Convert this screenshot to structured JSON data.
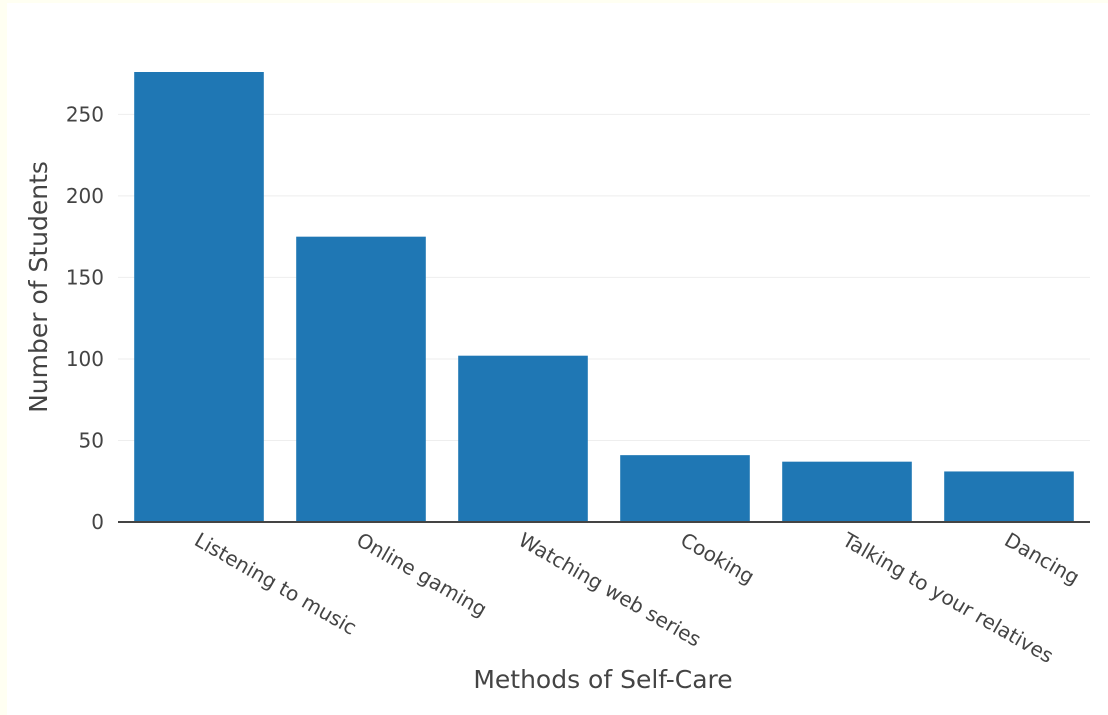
{
  "chart_data": {
    "type": "bar",
    "title": "",
    "xlabel": "Methods of Self-Care",
    "ylabel": "Number of Students",
    "categories": [
      "Listening to music",
      "Online gaming",
      "Watching web series",
      "Cooking",
      "Talking to your relatives",
      "Dancing"
    ],
    "values": [
      276,
      175,
      102,
      41,
      37,
      31
    ],
    "ylim": [
      0,
      276
    ],
    "yticks": [
      0,
      50,
      100,
      150,
      200,
      250
    ],
    "grid": true,
    "bar_color": "#1f77b4",
    "background_color": "#ffffff",
    "page_background_color": "#fffff2"
  }
}
